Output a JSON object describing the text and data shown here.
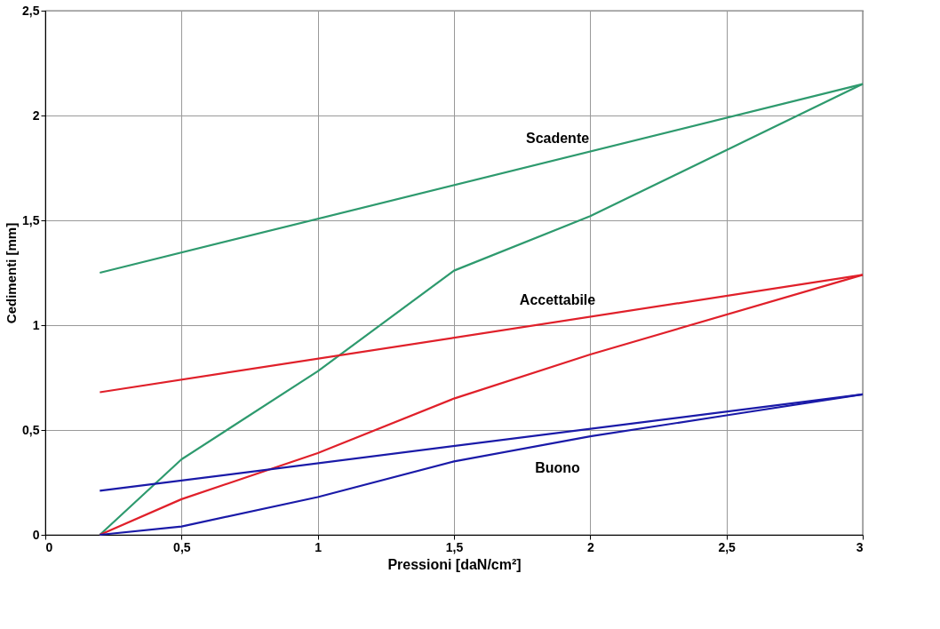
{
  "chart_data": {
    "type": "line",
    "xlabel": "Pressioni  [daN/cm²]",
    "ylabel": "Cedimenti [mm]",
    "xlim": [
      0,
      3
    ],
    "ylim": [
      0,
      2.5
    ],
    "xticks": [
      0,
      {
        "value": 0.5,
        "label": "0,5"
      },
      1,
      {
        "value": 1.5,
        "label": "1,5"
      },
      2,
      {
        "value": 2.5,
        "label": "2,5"
      },
      3
    ],
    "yticks": [
      0,
      {
        "value": 0.5,
        "label": "0,5"
      },
      1,
      {
        "value": 1.5,
        "label": "1,5"
      },
      2,
      {
        "value": 2.5,
        "label": "2,5"
      }
    ],
    "grid": true,
    "legend": false,
    "marker": "none",
    "line_style": "solid",
    "series": [
      {
        "color": "#2e9a6e",
        "x": [
          0.2,
          0.5,
          1,
          1.5,
          2,
          3
        ],
        "values": [
          0,
          0.36,
          0.78,
          1.26,
          1.52,
          2.15
        ]
      },
      {
        "name": "Scadente",
        "color": "#2e9a6e",
        "x": [
          0.2,
          3
        ],
        "values": [
          1.25,
          2.15
        ]
      },
      {
        "color": "#e0202a",
        "x": [
          0.2,
          0.5,
          1,
          1.5,
          2,
          3
        ],
        "values": [
          0,
          0.17,
          0.39,
          0.65,
          0.86,
          1.24
        ]
      },
      {
        "name": "Accettabile",
        "color": "#e0202a",
        "x": [
          0.2,
          3
        ],
        "values": [
          0.68,
          1.24
        ]
      },
      {
        "color": "#1a1aa8",
        "x": [
          0.2,
          0.5,
          1,
          1.5,
          2,
          2.5,
          3
        ],
        "values": [
          0,
          0.04,
          0.18,
          0.35,
          0.47,
          0.57,
          0.67
        ]
      },
      {
        "name": "Buono",
        "color": "#1a1aa8",
        "x": [
          0.2,
          3
        ],
        "values": [
          0.21,
          0.67
        ]
      }
    ]
  }
}
